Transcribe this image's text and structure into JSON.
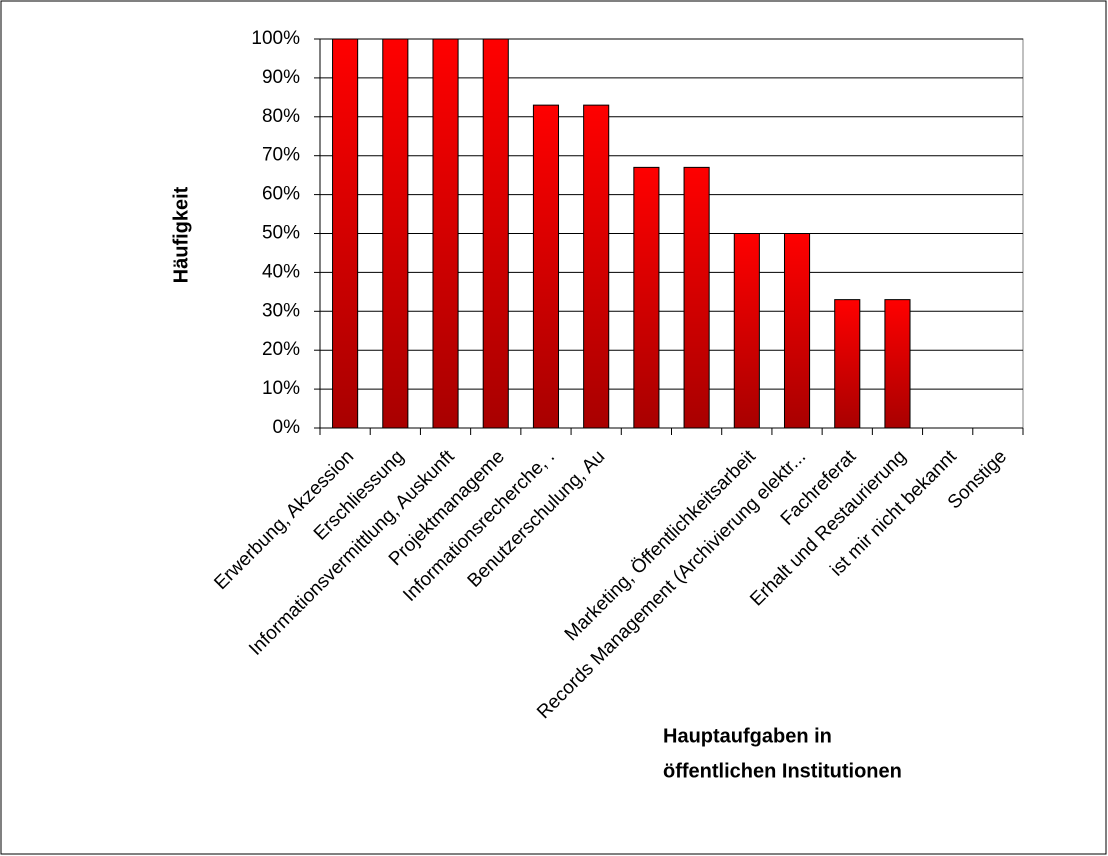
{
  "chart_data": {
    "type": "bar",
    "y_label": "Häufigkeit",
    "x_label": [
      "Hauptaufgaben in",
      "öffentlichen Institutionen"
    ],
    "categories": [
      "Erwerbung, Akzession",
      "Erschliessung",
      "Informationsvermittlung, Auskunft",
      "Projektmanageme",
      "Informationsrecherche, .",
      "Benutzerschulung, Au",
      null,
      null,
      "Marketing, Öffentlichkeitsarbeit",
      "Records Management (Archivierung elektr...",
      "Fachreferat",
      "Erhalt und Restaurierung",
      "ist mir nicht bekannt",
      "Sonstige"
    ],
    "values": [
      100,
      100,
      100,
      100,
      83,
      83,
      67,
      67,
      50,
      50,
      33,
      33,
      0,
      0
    ],
    "color": "#ff0000",
    "ylim": [
      0,
      100
    ],
    "yticks": [
      {
        "value": 0,
        "label": "0%"
      },
      {
        "value": 10,
        "label": "10%"
      },
      {
        "value": 20,
        "label": "20%"
      },
      {
        "value": 30,
        "label": "30%"
      },
      {
        "value": 40,
        "label": "40%"
      },
      {
        "value": 50,
        "label": "50%"
      },
      {
        "value": 60,
        "label": "60%"
      },
      {
        "value": 70,
        "label": "70%"
      },
      {
        "value": 80,
        "label": "80%"
      },
      {
        "value": 90,
        "label": "90%"
      },
      {
        "value": 100,
        "label": "100%"
      }
    ],
    "grid": true
  }
}
